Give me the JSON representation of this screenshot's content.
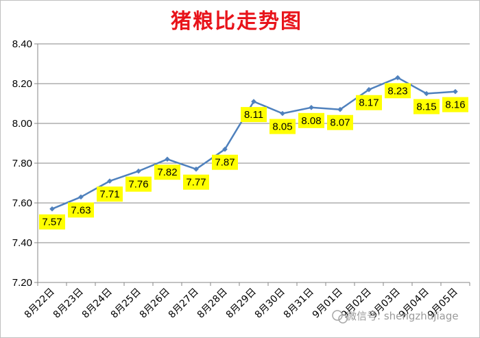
{
  "chart_data": {
    "type": "line",
    "title": "猪粮比走势图",
    "xlabel": "",
    "ylabel": "",
    "categories": [
      "8月22日",
      "8月23日",
      "8月24日",
      "8月25日",
      "8月26日",
      "8月27日",
      "8月28日",
      "8月29日",
      "8月30日",
      "8月31日",
      "9月01日",
      "9月02日",
      "9月03日",
      "9月04日",
      "9月05日"
    ],
    "series": [
      {
        "values": [
          7.57,
          7.63,
          7.71,
          7.76,
          7.82,
          7.77,
          7.87,
          8.11,
          8.05,
          8.08,
          8.07,
          8.17,
          8.23,
          8.15,
          8.16
        ],
        "labels": [
          "7.57",
          "7.63",
          "7.71",
          "7.76",
          "7.82",
          "7.77",
          "7.87",
          "8.11",
          "8.05",
          "8.08",
          "8.07",
          "8.17",
          "8.23",
          "8.15",
          "8.16"
        ]
      }
    ],
    "yticks": [
      "7.20",
      "7.40",
      "7.60",
      "7.80",
      "8.00",
      "8.20",
      "8.40"
    ],
    "ylim": [
      7.2,
      8.4
    ],
    "grid": true,
    "line_color": "#4f81bd",
    "label_bg_color": "#ffff00",
    "title_color": "#e8141b"
  },
  "watermark": {
    "text": "微信号: shengzhujiage",
    "icon": "wechat-icon"
  }
}
